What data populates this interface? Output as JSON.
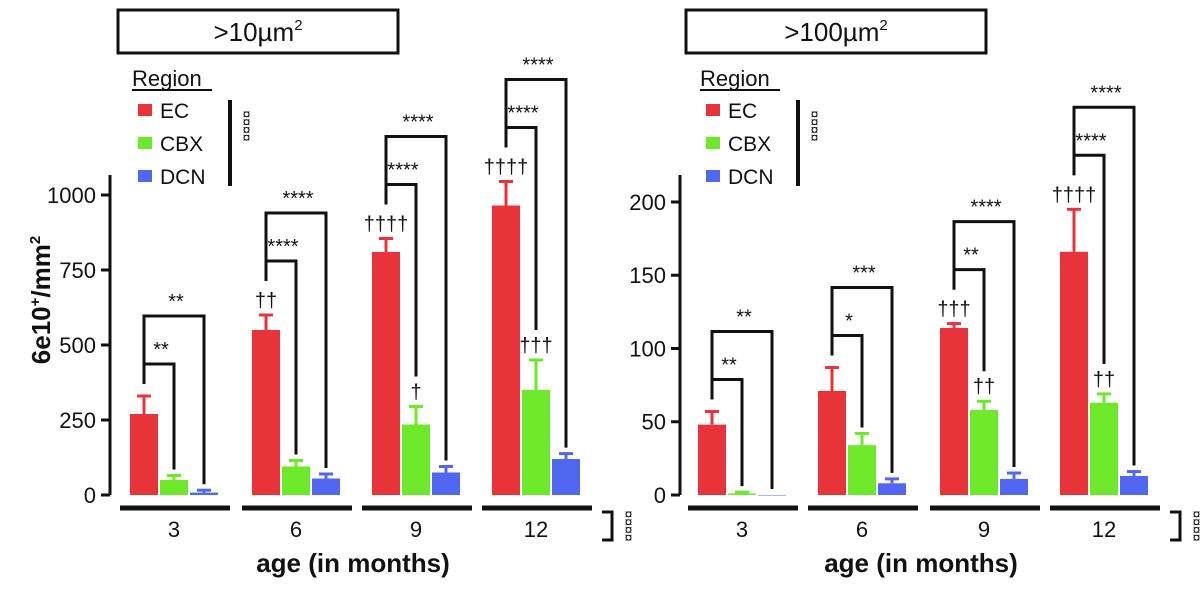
{
  "chart_data": [
    {
      "type": "bar",
      "title_main": ">10µm",
      "title_sup": "2",
      "ylabel_main": "6e10",
      "ylabel_sup": "+",
      "ylabel_rest": "/mm",
      "ylabel_sup2": "2",
      "xlabel": "age (in months)",
      "ylim": [
        0,
        1050
      ],
      "yticks": [
        "0",
        "250",
        "500",
        "750",
        "1000"
      ],
      "ytick_values": [
        0,
        250,
        500,
        750,
        1000
      ],
      "categories": [
        "3",
        "6",
        "9",
        "12"
      ],
      "legend_title": "Region",
      "legend_sig": "¤¤¤¤",
      "x_sig": "¤¤¤¤",
      "series": [
        {
          "name": "EC",
          "color": "#e8333a",
          "values": [
            270,
            550,
            810,
            965
          ],
          "errors": [
            60,
            50,
            45,
            80
          ],
          "sig": [
            "",
            "††",
            "††††",
            "††††"
          ]
        },
        {
          "name": "CBX",
          "color": "#6ee82a",
          "values": [
            50,
            95,
            235,
            350
          ],
          "errors": [
            15,
            20,
            60,
            100
          ],
          "sig": [
            "",
            "",
            "†",
            "†††"
          ]
        },
        {
          "name": "DCN",
          "color": "#5267f0",
          "values": [
            8,
            55,
            75,
            120
          ],
          "errors": [
            8,
            15,
            20,
            18
          ],
          "sig": [
            "",
            "",
            "",
            ""
          ]
        }
      ],
      "brackets": [
        {
          "group": 0,
          "pair": "EC-CBX",
          "label": "**"
        },
        {
          "group": 0,
          "pair": "EC-DCN",
          "label": "**"
        },
        {
          "group": 1,
          "pair": "EC-CBX",
          "label": "****"
        },
        {
          "group": 1,
          "pair": "EC-DCN",
          "label": "****"
        },
        {
          "group": 2,
          "pair": "EC-CBX",
          "label": "****"
        },
        {
          "group": 2,
          "pair": "EC-DCN",
          "label": "****"
        },
        {
          "group": 3,
          "pair": "EC-CBX",
          "label": "****"
        },
        {
          "group": 3,
          "pair": "EC-DCN",
          "label": "****"
        }
      ]
    },
    {
      "type": "bar",
      "title_main": ">100µm",
      "title_sup": "2",
      "xlabel": "age (in months)",
      "ylim": [
        0,
        215
      ],
      "yticks": [
        "0",
        "50",
        "100",
        "150",
        "200"
      ],
      "ytick_values": [
        0,
        50,
        100,
        150,
        200
      ],
      "categories": [
        "3",
        "6",
        "9",
        "12"
      ],
      "legend_title": "Region",
      "legend_sig": "¤¤¤¤",
      "x_sig": "¤¤¤¤",
      "series": [
        {
          "name": "EC",
          "color": "#e8333a",
          "values": [
            48,
            71,
            114,
            166
          ],
          "errors": [
            9,
            16,
            3,
            29
          ],
          "sig": [
            "",
            "",
            "†††",
            "††††"
          ]
        },
        {
          "name": "CBX",
          "color": "#6ee82a",
          "values": [
            1,
            34,
            58,
            63
          ],
          "errors": [
            1,
            8,
            6,
            6
          ],
          "sig": [
            "",
            "",
            "††",
            "††"
          ]
        },
        {
          "name": "DCN",
          "color": "#5267f0",
          "values": [
            0,
            8,
            11,
            13
          ],
          "errors": [
            0,
            3,
            4,
            3
          ],
          "sig": [
            "",
            "",
            "",
            ""
          ]
        }
      ],
      "brackets": [
        {
          "group": 0,
          "pair": "EC-CBX",
          "label": "**"
        },
        {
          "group": 0,
          "pair": "EC-DCN",
          "label": "**"
        },
        {
          "group": 1,
          "pair": "EC-CBX",
          "label": "*"
        },
        {
          "group": 1,
          "pair": "EC-DCN",
          "label": "***"
        },
        {
          "group": 2,
          "pair": "EC-CBX",
          "label": "**"
        },
        {
          "group": 2,
          "pair": "EC-DCN",
          "label": "****"
        },
        {
          "group": 3,
          "pair": "EC-CBX",
          "label": "****"
        },
        {
          "group": 3,
          "pair": "EC-DCN",
          "label": "****"
        }
      ]
    }
  ]
}
